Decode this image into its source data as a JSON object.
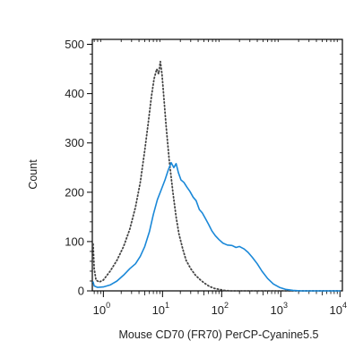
{
  "chart_data": {
    "type": "line",
    "title": "",
    "xlabel": "Mouse CD70 (FR70) PerCP-Cyanine5.5",
    "ylabel": "Count",
    "x_scale": "log",
    "xlim": [
      0.65,
      11000
    ],
    "ylim": [
      0,
      510
    ],
    "y_ticks": [
      0,
      100,
      200,
      300,
      400,
      500
    ],
    "x_ticks": [
      {
        "value": 1,
        "base": "10",
        "exp": "0"
      },
      {
        "value": 10,
        "base": "10",
        "exp": "1"
      },
      {
        "value": 100,
        "base": "10",
        "exp": "2"
      },
      {
        "value": 1000,
        "base": "10",
        "exp": "3"
      },
      {
        "value": 10000,
        "base": "10",
        "exp": "4"
      }
    ],
    "grid": false,
    "legend": "none",
    "series": [
      {
        "style": "dotted",
        "color": "#444444",
        "points": [
          [
            0.67,
            95
          ],
          [
            0.7,
            45
          ],
          [
            0.75,
            22
          ],
          [
            0.85,
            18
          ],
          [
            1.0,
            22
          ],
          [
            1.3,
            40
          ],
          [
            1.7,
            62
          ],
          [
            2.2,
            90
          ],
          [
            2.8,
            125
          ],
          [
            3.5,
            170
          ],
          [
            4.2,
            220
          ],
          [
            5.0,
            285
          ],
          [
            5.8,
            345
          ],
          [
            6.5,
            395
          ],
          [
            7.2,
            430
          ],
          [
            8.0,
            450
          ],
          [
            8.6,
            440
          ],
          [
            9.2,
            465
          ],
          [
            9.8,
            440
          ],
          [
            10.5,
            395
          ],
          [
            11.5,
            335
          ],
          [
            13.0,
            265
          ],
          [
            15.0,
            200
          ],
          [
            17.0,
            150
          ],
          [
            19.0,
            115
          ],
          [
            22.0,
            85
          ],
          [
            25.0,
            62
          ],
          [
            30.0,
            45
          ],
          [
            36.0,
            32
          ],
          [
            43.0,
            23
          ],
          [
            52.0,
            15
          ],
          [
            62.0,
            9
          ],
          [
            75.0,
            5
          ],
          [
            90.0,
            3
          ],
          [
            110.0,
            1
          ],
          [
            140.0,
            0
          ],
          [
            10000,
            0
          ]
        ]
      },
      {
        "style": "solid",
        "color": "#1a88d8",
        "points": [
          [
            0.67,
            18
          ],
          [
            0.7,
            10
          ],
          [
            0.8,
            7
          ],
          [
            1.0,
            8
          ],
          [
            1.3,
            12
          ],
          [
            1.7,
            20
          ],
          [
            2.2,
            32
          ],
          [
            2.8,
            45
          ],
          [
            3.5,
            55
          ],
          [
            4.2,
            70
          ],
          [
            5.0,
            90
          ],
          [
            6.0,
            120
          ],
          [
            7.0,
            155
          ],
          [
            8.2,
            185
          ],
          [
            9.5,
            205
          ],
          [
            11.0,
            225
          ],
          [
            12.5,
            245
          ],
          [
            14.0,
            260
          ],
          [
            15.5,
            250
          ],
          [
            17.0,
            258
          ],
          [
            18.5,
            240
          ],
          [
            20.5,
            225
          ],
          [
            23.0,
            220
          ],
          [
            26.0,
            210
          ],
          [
            29.0,
            202
          ],
          [
            33.0,
            190
          ],
          [
            37.0,
            183
          ],
          [
            42.0,
            165
          ],
          [
            47.0,
            158
          ],
          [
            53.0,
            147
          ],
          [
            60.0,
            135
          ],
          [
            68.0,
            122
          ],
          [
            78.0,
            112
          ],
          [
            90.0,
            104
          ],
          [
            105.0,
            97
          ],
          [
            125.0,
            93
          ],
          [
            150.0,
            92
          ],
          [
            175.0,
            88
          ],
          [
            200.0,
            90
          ],
          [
            240.0,
            85
          ],
          [
            280.0,
            78
          ],
          [
            330.0,
            68
          ],
          [
            400.0,
            55
          ],
          [
            480.0,
            40
          ],
          [
            600.0,
            25
          ],
          [
            750.0,
            14
          ],
          [
            950.0,
            7
          ],
          [
            1200.0,
            3
          ],
          [
            1600.0,
            1
          ],
          [
            2200.0,
            0
          ],
          [
            10000,
            0
          ]
        ]
      }
    ]
  }
}
